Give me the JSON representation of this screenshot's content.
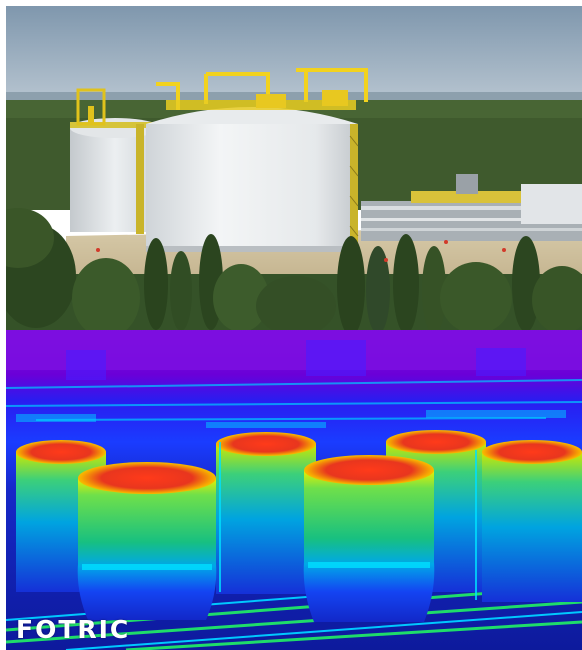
{
  "photo": {
    "label": "lng-storage-tanks-photo",
    "colors": {
      "sky": "#8fa6ba",
      "forest": "#3e5a2c",
      "tank": "#e9ecee",
      "gantry": "#f2d21e",
      "ground": "#cdbf9f"
    }
  },
  "thermal": {
    "label": "thermal-infrared-image",
    "palette": [
      "#6a00d8",
      "#1e2cff",
      "#00b8ff",
      "#1fdc6a",
      "#e6f000",
      "#ff3a1a",
      "#ffffff"
    ]
  },
  "brand": {
    "logo_text": "FOTRIC"
  }
}
